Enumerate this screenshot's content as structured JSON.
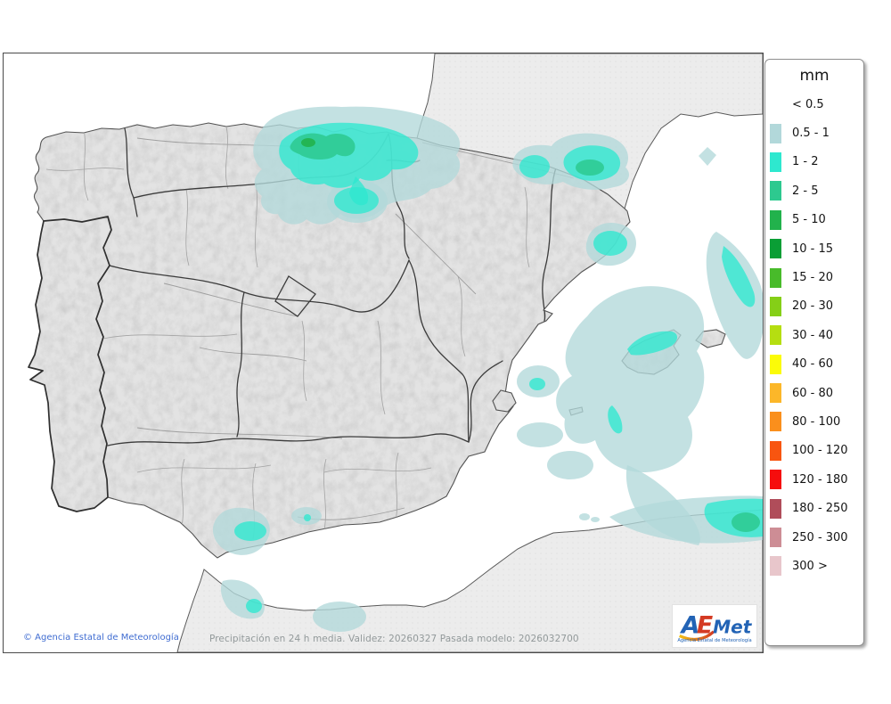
{
  "legend": {
    "title": "mm",
    "first_label": "< 0.5",
    "entries": [
      {
        "label": "0.5 - 1",
        "color": "#b2d8da"
      },
      {
        "label": "1 - 2",
        "color": "#2ee8cf"
      },
      {
        "label": "2 - 5",
        "color": "#2dc98f"
      },
      {
        "label": "5 - 10",
        "color": "#22b24c"
      },
      {
        "label": "10 - 15",
        "color": "#0a9e35"
      },
      {
        "label": "15 - 20",
        "color": "#48bb2a"
      },
      {
        "label": "20 - 30",
        "color": "#85cf17"
      },
      {
        "label": "30 - 40",
        "color": "#b5de11"
      },
      {
        "label": "40 - 60",
        "color": "#fbfb08"
      },
      {
        "label": "60 - 80",
        "color": "#fcb729"
      },
      {
        "label": "80 - 100",
        "color": "#fa8f1c"
      },
      {
        "label": "100 - 120",
        "color": "#f85510"
      },
      {
        "label": "120 - 180",
        "color": "#f60d0d"
      },
      {
        "label": "180 - 250",
        "color": "#b04d5a"
      },
      {
        "label": "250 - 300",
        "color": "#cd8d95"
      },
      {
        "label": "300 >",
        "color": "#e8c6cb"
      }
    ]
  },
  "footer": {
    "copyright": "© Agencia Estatal de Meteorología",
    "caption": "Precipitación en 24 h media. Validez: 20260327 Pasada modelo: 2026032700"
  },
  "logo": {
    "a": "A",
    "e": "E",
    "met": "Met",
    "subtitle": "Agencia Estatal de Meteorología"
  },
  "map": {
    "land_colors": {
      "sea": "#ffffff",
      "spain": "#e3e3e3",
      "neighbors": "#ececec"
    },
    "precip_colors": {
      "light": "#b2d8da",
      "cyan": "#2ee8cf",
      "green": "#2dc98f",
      "dark": "#22b24c"
    }
  }
}
